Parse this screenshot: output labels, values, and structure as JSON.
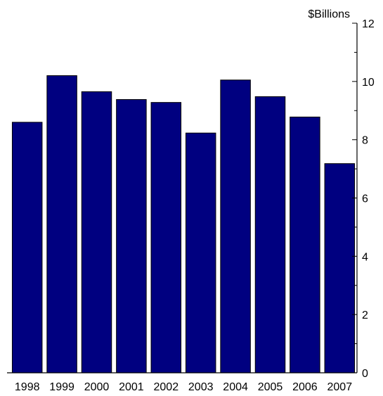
{
  "chart_data": {
    "type": "bar",
    "categories": [
      "1998",
      "1999",
      "2000",
      "2001",
      "2002",
      "2003",
      "2004",
      "2005",
      "2006",
      "2007"
    ],
    "values": [
      8.6,
      10.2,
      9.65,
      9.38,
      9.28,
      8.23,
      10.05,
      9.48,
      8.78,
      7.18
    ],
    "ylabel": "$Billions",
    "ylim": [
      0,
      12
    ],
    "yticks": [
      0,
      2,
      4,
      6,
      8,
      10,
      12
    ],
    "y_axis_side": "right",
    "grid": false,
    "colors": {
      "bar_fill": "#000080",
      "bar_stroke": "#000000",
      "axis": "#000000",
      "text": "#000000"
    }
  }
}
